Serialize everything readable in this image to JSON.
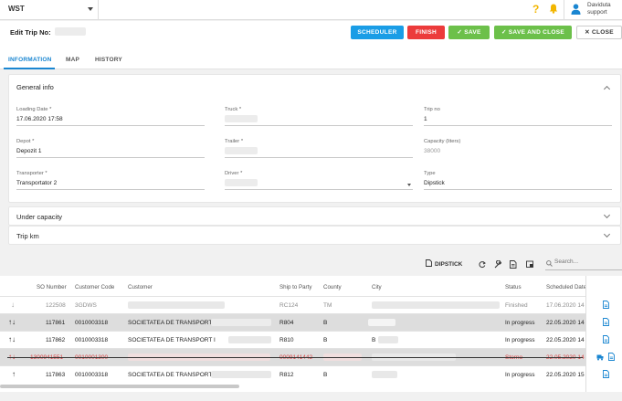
{
  "topbar": {
    "workspace": "WST",
    "user_name": "Daviduta",
    "user_role": "support"
  },
  "titlebar": {
    "title": "Edit Trip No:",
    "buttons": {
      "scheduler": "SCHEDULER",
      "finish": "FINISH",
      "save": "SAVE",
      "save_close": "SAVE AND CLOSE",
      "close": "CLOSE"
    }
  },
  "tabs": [
    "INFORMATION",
    "MAP",
    "HISTORY"
  ],
  "general_info": {
    "title": "General info",
    "loading_date_label": "Loading Date *",
    "loading_date": "17.06.2020 17:58",
    "truck_label": "Truck *",
    "trip_no_label": "Trip no",
    "trip_no": "1",
    "depot_label": "Depot *",
    "depot": "Depozit 1",
    "trailer_label": "Trailer *",
    "capacity_label": "Capacity (liters)",
    "capacity": "38000",
    "transporter_label": "Transporter *",
    "transporter": "Transportator 2",
    "driver_label": "Driver *",
    "type_label": "Type",
    "type": "Dipstick"
  },
  "panels": {
    "under_capacity": "Under capacity",
    "trip_km": "Trip km"
  },
  "grid_toolbar": {
    "dipstick": "DIPSTICK",
    "search_placeholder": "Search..."
  },
  "table": {
    "columns": [
      "SO Number",
      "Customer Code",
      "Customer",
      "Ship to Party",
      "County",
      "City",
      "Status",
      "Scheduled Date"
    ],
    "rows": [
      {
        "arrows": "↓",
        "so": "122508",
        "code": "3GDWS",
        "customer": "",
        "ship": "RC124",
        "county": "TM",
        "city": "",
        "status": "Finished",
        "date": "17.06.2020 14",
        "style": "muted"
      },
      {
        "arrows": "↑↓",
        "so": "117861",
        "code": "0010003318",
        "customer": "SOCIETATEA DE TRANSPORT",
        "ship": "R804",
        "county": "B",
        "city": "",
        "status": "In progress",
        "date": "22.05.2020 14",
        "style": "sel"
      },
      {
        "arrows": "↑↓",
        "so": "117862",
        "code": "0010003318",
        "customer": "SOCIETATEA DE TRANSPORT I",
        "ship": "R810",
        "county": "B",
        "city": "B",
        "status": "In progress",
        "date": "22.05.2020 14",
        "style": ""
      },
      {
        "arrows": "↑↓",
        "so": "1300941551",
        "code": "0010001300",
        "customer": "",
        "ship": "0009141442",
        "county": "",
        "city": "",
        "status": "Storno",
        "date": "22.05.2020 14",
        "style": "storno"
      },
      {
        "arrows": "↑",
        "so": "117863",
        "code": "0010003318",
        "customer": "SOCIETATEA DE TRANSPORT",
        "ship": "R812",
        "county": "B",
        "city": "",
        "status": "In progress",
        "date": "22.05.2020 15",
        "style": ""
      }
    ]
  },
  "colors": {
    "accent": "#1a86d1",
    "scheduler": "#1a9de6",
    "finish": "#ec3b3b",
    "save": "#6cc04a",
    "storno": "#d94040"
  }
}
